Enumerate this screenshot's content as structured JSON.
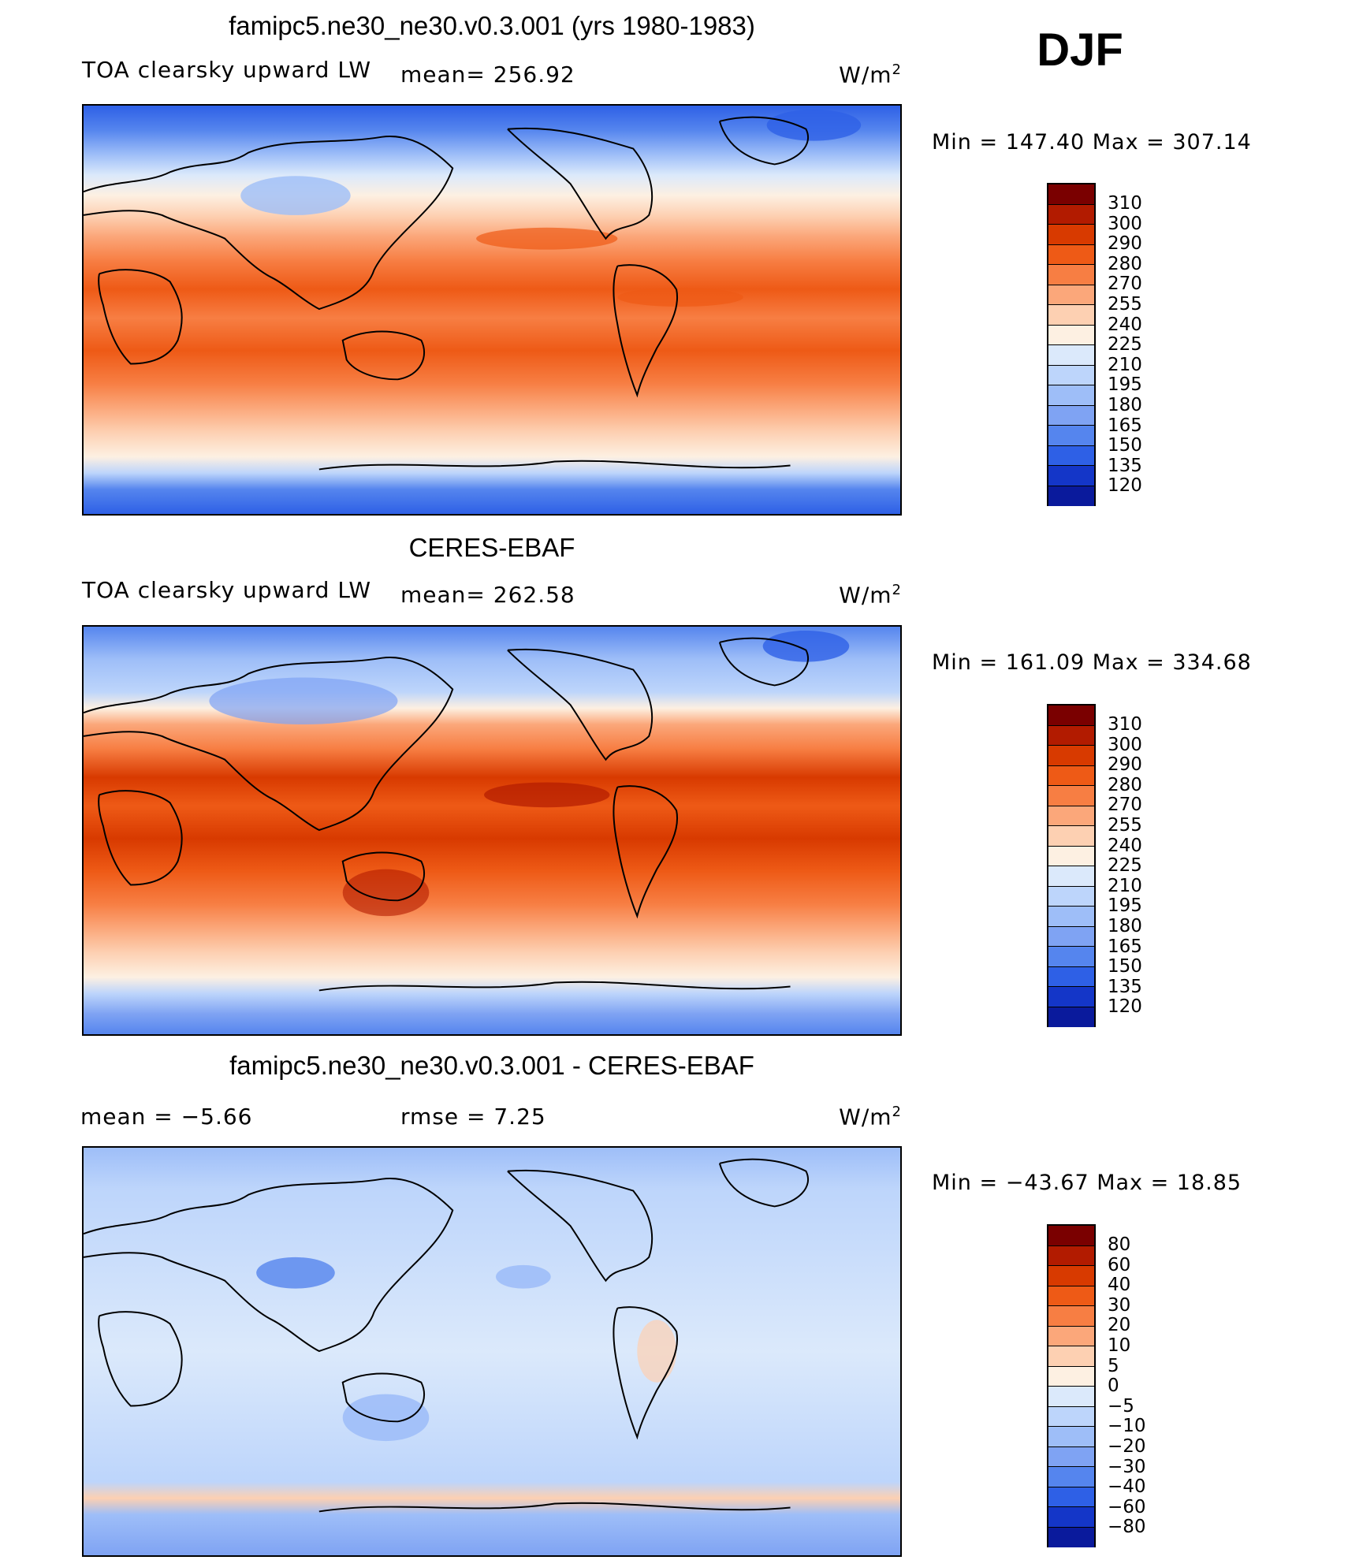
{
  "season": "DJF",
  "units": "W/m",
  "units_superscript": "2",
  "panels": [
    {
      "title": "famipc5.ne30_ne30.v0.3.001 (yrs 1980-1983)",
      "left_label": "TOA clearsky upward LW",
      "center_label": "mean= 256.92",
      "minmax": "Min = 147.40 Max = 307.14",
      "colorbar_labels": [
        "310",
        "300",
        "290",
        "280",
        "270",
        "255",
        "240",
        "225",
        "210",
        "195",
        "180",
        "165",
        "150",
        "135",
        "120"
      ]
    },
    {
      "title": "CERES-EBAF",
      "left_label": "TOA clearsky upward LW",
      "center_label": "mean= 262.58",
      "minmax": "Min = 161.09 Max = 334.68",
      "colorbar_labels": [
        "310",
        "300",
        "290",
        "280",
        "270",
        "255",
        "240",
        "225",
        "210",
        "195",
        "180",
        "165",
        "150",
        "135",
        "120"
      ]
    },
    {
      "title": "famipc5.ne30_ne30.v0.3.001 - CERES-EBAF",
      "left_label": "mean =   −5.66",
      "center_label": "rmse =    7.25",
      "minmax": "Min = −43.67 Max =  18.85",
      "colorbar_labels": [
        "80",
        "60",
        "40",
        "30",
        "20",
        "10",
        "5",
        "0",
        "−5",
        "−10",
        "−20",
        "−30",
        "−40",
        "−60",
        "−80"
      ]
    }
  ],
  "colors": {
    "colorbar": [
      "#7a0000",
      "#b21b00",
      "#d83a00",
      "#ee5a16",
      "#f77e43",
      "#fba77a",
      "#fdd0b2",
      "#fdf0e2",
      "#dbe9fb",
      "#bdd5fb",
      "#9ebef8",
      "#7fa3f3",
      "#5585ee",
      "#2e60e6",
      "#1436c8",
      "#0a1a9c",
      "#000a70"
    ],
    "land_outline": "#000000"
  }
}
